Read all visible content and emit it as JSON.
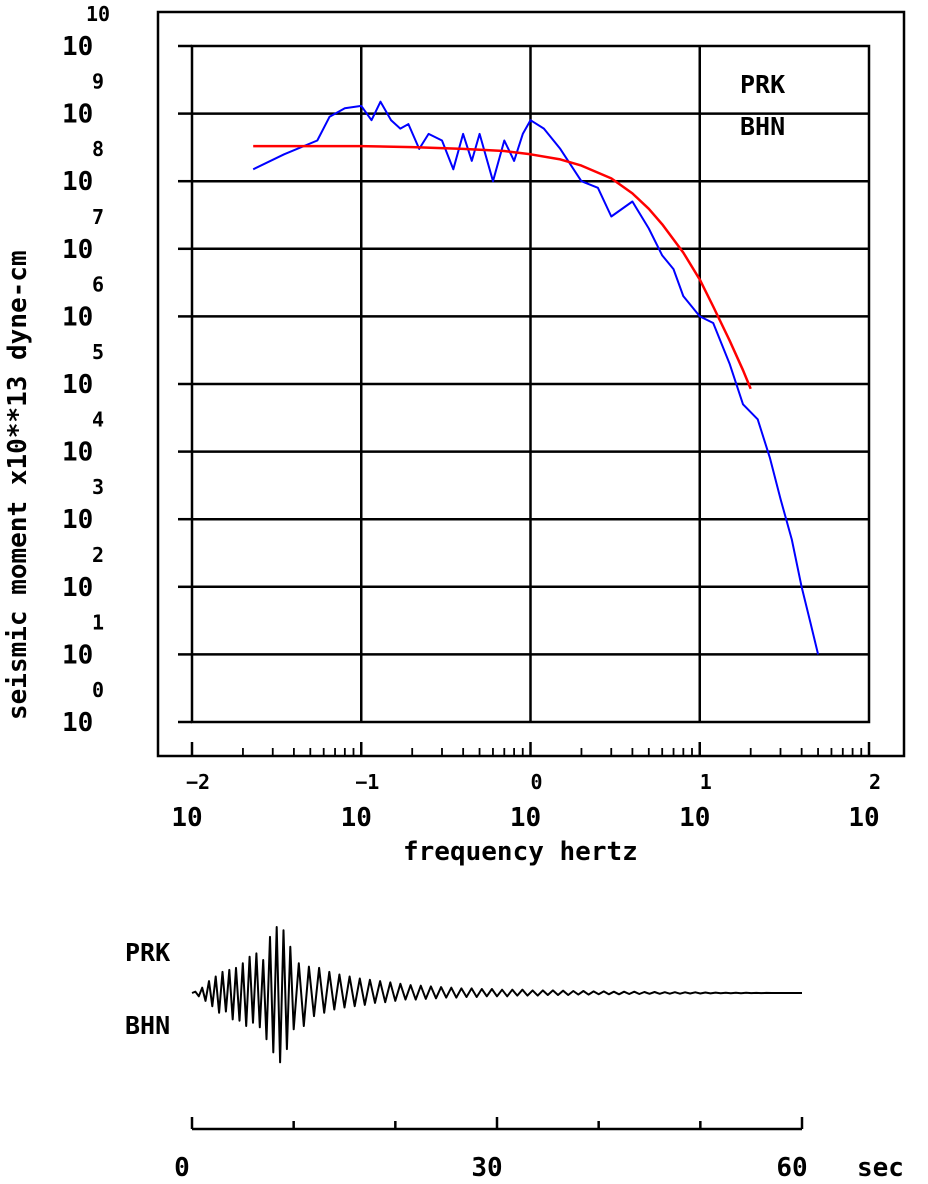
{
  "chart_data": [
    {
      "type": "line",
      "xlabel": "frequency  hertz",
      "ylabel": "seismic moment x10**13 dyne-cm",
      "x_scale": "log",
      "y_scale": "log",
      "xlim": [
        0.01,
        100
      ],
      "ylim": [
        1,
        10000000000.0
      ],
      "x_tick_base": "10",
      "x_tick_exponents": [
        "-2",
        "-1",
        "0",
        "1",
        "2"
      ],
      "y_tick_base": "10",
      "y_tick_exponents": [
        "0",
        "1",
        "2",
        "3",
        "4",
        "5",
        "6",
        "7",
        "8",
        "9",
        "10"
      ],
      "grid": true,
      "annotations": [
        "PRK",
        "BHN"
      ],
      "series": [
        {
          "color": "#0000ff",
          "x": [
            0.023,
            0.035,
            0.055,
            0.065,
            0.08,
            0.1,
            0.115,
            0.13,
            0.15,
            0.17,
            0.19,
            0.22,
            0.25,
            0.3,
            0.35,
            0.4,
            0.45,
            0.5,
            0.6,
            0.7,
            0.8,
            0.9,
            1.0,
            1.2,
            1.5,
            2,
            2.5,
            3,
            4,
            5,
            6,
            7,
            8,
            10,
            12,
            15,
            18,
            22,
            26,
            30,
            35,
            40,
            45,
            50
          ],
          "y": [
            150000000.0,
            250000000.0,
            400000000.0,
            900000000.0,
            1200000000.0,
            1300000000.0,
            800000000.0,
            1500000000.0,
            800000000.0,
            600000000.0,
            700000000.0,
            300000000.0,
            500000000.0,
            400000000.0,
            150000000.0,
            500000000.0,
            200000000.0,
            500000000.0,
            100000000.0,
            400000000.0,
            200000000.0,
            500000000.0,
            800000000.0,
            600000000.0,
            300000000.0,
            100000000.0,
            80000000.0,
            30000000.0,
            50000000.0,
            20000000.0,
            8000000.0,
            5000000.0,
            2000000.0,
            1000000.0,
            800000.0,
            200000.0,
            50000.0,
            30000.0,
            8000.0,
            2000.0,
            500.0,
            100.0,
            30,
            10
          ]
        },
        {
          "color": "#ff0000",
          "x": [
            0.023,
            0.05,
            0.1,
            0.2,
            0.4,
            0.7,
            1.0,
            1.5,
            2,
            3,
            4,
            5,
            6,
            8,
            10,
            12,
            15,
            18,
            20
          ],
          "y": [
            330000000.0,
            330000000.0,
            330000000.0,
            320000000.0,
            300000000.0,
            280000000.0,
            250000000.0,
            210000000.0,
            170000000.0,
            110000000.0,
            66000000.0,
            39000000.0,
            23000000.0,
            8800000.0,
            3500000.0,
            1400000.0,
            440000.0,
            160000.0,
            85000.0
          ]
        }
      ]
    },
    {
      "type": "line",
      "xlabel": "sec",
      "xlim": [
        0,
        60
      ],
      "x_ticks": [
        0,
        30,
        60
      ],
      "annotations": [
        "PRK",
        "BHN"
      ],
      "series": [
        {
          "color": "#000000",
          "t": [
            0.0,
            0.33,
            0.67,
            1.0,
            1.33,
            1.67,
            2.0,
            2.33,
            2.67,
            3.0,
            3.33,
            3.67,
            4.0,
            4.33,
            4.67,
            5.0,
            5.33,
            5.67,
            6.0,
            6.33,
            6.67,
            7.0,
            7.33,
            7.67,
            8.0,
            8.33,
            8.67,
            9.0,
            9.33,
            9.67,
            10.0,
            10.5,
            11.0,
            11.5,
            12.0,
            12.5,
            13.0,
            13.5,
            14.0,
            14.5,
            15.0,
            15.5,
            16.0,
            16.5,
            17.0,
            17.5,
            18.0,
            18.5,
            19.0,
            19.5,
            20.0,
            20.5,
            21.0,
            21.5,
            22.0,
            22.5,
            23.0,
            23.5,
            24.0,
            24.5,
            25.0,
            25.5,
            26.0,
            26.5,
            27.0,
            27.5,
            28.0,
            28.5,
            29.0,
            29.5,
            30.0,
            30.5,
            31.0,
            31.5,
            32.0,
            32.5,
            33.0,
            33.5,
            34.0,
            34.5,
            35.0,
            35.5,
            36.0,
            36.5,
            37.0,
            37.5,
            38.0,
            38.5,
            39.0,
            39.5,
            40.0,
            40.5,
            41.0,
            41.5,
            42.0,
            42.5,
            43.0,
            43.5,
            44.0,
            44.5,
            45.0,
            45.5,
            46.0,
            46.5,
            47.0,
            47.5,
            48.0,
            48.5,
            49.0,
            49.5,
            50.0,
            50.5,
            51.0,
            51.5,
            52.0,
            52.5,
            53.0,
            53.5,
            54.0,
            54.5,
            55.0,
            55.5,
            56.0,
            56.5,
            57.0,
            57.5,
            58.0,
            58.5,
            59.0,
            59.5,
            60.0
          ],
          "a": [
            0.0,
            0.02,
            -0.05,
            0.08,
            -0.12,
            0.18,
            -0.2,
            0.25,
            -0.3,
            0.32,
            -0.28,
            0.35,
            -0.4,
            0.38,
            -0.42,
            0.45,
            -0.5,
            0.55,
            -0.45,
            0.6,
            -0.52,
            0.5,
            -0.7,
            0.85,
            -0.9,
            1.0,
            -1.05,
            0.95,
            -0.85,
            0.7,
            -0.55,
            0.45,
            -0.5,
            0.4,
            -0.35,
            0.38,
            -0.3,
            0.32,
            -0.25,
            0.28,
            -0.22,
            0.25,
            -0.2,
            0.22,
            -0.18,
            0.2,
            -0.15,
            0.18,
            -0.14,
            0.16,
            -0.12,
            0.14,
            -0.1,
            0.12,
            -0.1,
            0.11,
            -0.09,
            0.1,
            -0.08,
            0.09,
            -0.07,
            0.08,
            -0.07,
            0.07,
            -0.06,
            0.07,
            -0.06,
            0.06,
            -0.05,
            0.06,
            -0.05,
            0.05,
            -0.05,
            0.05,
            -0.04,
            0.05,
            -0.04,
            0.04,
            -0.04,
            0.04,
            -0.03,
            0.04,
            -0.03,
            0.035,
            -0.03,
            0.03,
            -0.025,
            0.03,
            -0.025,
            0.025,
            -0.02,
            0.025,
            -0.02,
            0.02,
            -0.02,
            0.02,
            -0.015,
            0.02,
            -0.015,
            0.015,
            -0.012,
            0.015,
            -0.012,
            0.012,
            -0.01,
            0.012,
            -0.01,
            0.01,
            -0.008,
            0.01,
            -0.008,
            0.008,
            -0.006,
            0.006,
            -0.005,
            0.005,
            -0.004,
            0.004,
            -0.003,
            0.003,
            -0.002,
            0.002,
            -0.001,
            0.001,
            0.0,
            0.0,
            0.0,
            0.0,
            0.0,
            0.0,
            0.0
          ]
        }
      ]
    }
  ]
}
